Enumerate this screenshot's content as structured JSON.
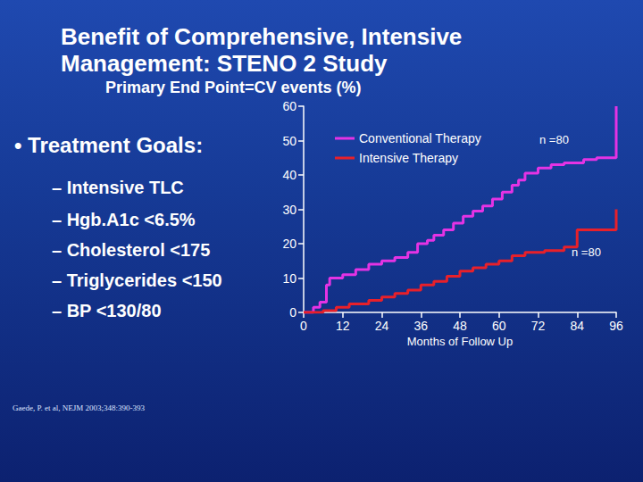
{
  "chart_data": {
    "type": "line",
    "title": "Benefit of Comprehensive, Intensive Management: STENO 2 Study",
    "subtitle": "Primary End Point=CV events (%)",
    "x_label": "Months of Follow Up",
    "xlim": [
      0,
      96
    ],
    "xticks": [
      0,
      12,
      24,
      36,
      48,
      60,
      72,
      84,
      96
    ],
    "ylim": [
      0,
      60
    ],
    "yticks": [
      0,
      10,
      20,
      30,
      40,
      50,
      60
    ],
    "grid": false,
    "legend": "upper left",
    "line_style": "step",
    "marker": "none",
    "series": [
      {
        "name": "Conventional Therapy",
        "color": "#e433e4",
        "annotation": "n =80",
        "x": [
          0,
          3,
          5,
          7,
          8,
          12,
          16,
          20,
          24,
          28,
          32,
          35,
          38,
          40,
          43,
          46,
          49,
          52,
          55,
          58,
          61,
          64,
          66,
          68,
          72,
          76,
          80,
          86,
          90,
          96
        ],
        "values": [
          0,
          1.5,
          3,
          8,
          10,
          11,
          12.5,
          14,
          15,
          16,
          17.5,
          20,
          21,
          22.5,
          24,
          26,
          28,
          29.5,
          31,
          33,
          35,
          37,
          38.5,
          40.5,
          42,
          43,
          43.5,
          44.5,
          45,
          60
        ]
      },
      {
        "name": "Intensive Therapy",
        "color": "#e8202a",
        "annotation": "n =80",
        "x": [
          0,
          6,
          10,
          14,
          20,
          24,
          28,
          32,
          36,
          40,
          44,
          48,
          52,
          56,
          60,
          64,
          68,
          74,
          80,
          84,
          96
        ],
        "values": [
          0,
          0.5,
          1.5,
          2.5,
          3.5,
          4.5,
          5.5,
          6.5,
          8,
          9,
          10.5,
          12,
          13,
          14,
          15,
          16.5,
          17.5,
          18,
          19,
          24,
          30
        ]
      }
    ],
    "treatment_goals": {
      "heading": "• Treatment Goals:",
      "items": [
        "– Intensive TLC",
        "– Hgb.A1c <6.5%",
        "– Cholesterol <175",
        "– Triglycerides <150",
        "– BP <130/80"
      ]
    },
    "source": "Gaede, P. et al, NEJM 2003;348:390-393"
  }
}
